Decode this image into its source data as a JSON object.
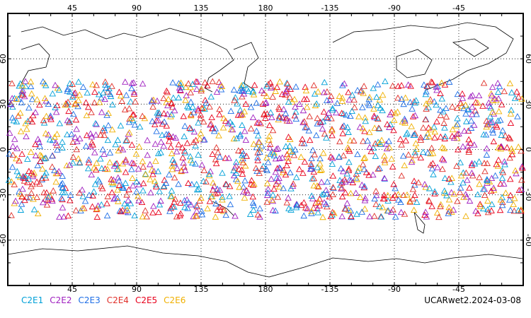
{
  "map": {
    "projection": "cylindrical-equidistant",
    "center_longitude": 180,
    "lon_range": [
      0,
      360
    ],
    "lat_range": [
      -90,
      90
    ],
    "top_lon_labels": [
      "45",
      "90",
      "135",
      "180",
      "-135",
      "-90",
      "-45"
    ],
    "bottom_lon_labels": [
      "45",
      "90",
      "135",
      "180",
      "-135",
      "-90",
      "-45"
    ],
    "left_lat_labels": [
      "60",
      "30",
      "0",
      "-30",
      "-60"
    ],
    "right_lat_labels": [
      "60",
      "30",
      "0",
      "-30",
      "-60"
    ],
    "gridlines": "dotted",
    "marker": "open-triangle",
    "observation_lat_band": [
      -45,
      45
    ]
  },
  "legend": [
    {
      "label": "C2E1",
      "color": "#00a0d8"
    },
    {
      "label": "C2E2",
      "color": "#a020c0"
    },
    {
      "label": "C2E3",
      "color": "#1e6ee6"
    },
    {
      "label": "C2E4",
      "color": "#e0302a"
    },
    {
      "label": "C2E5",
      "color": "#e8001c"
    },
    {
      "label": "C2E6",
      "color": "#f0b000"
    }
  ],
  "footer": {
    "label": "UCARwet2.2024-03-08"
  }
}
